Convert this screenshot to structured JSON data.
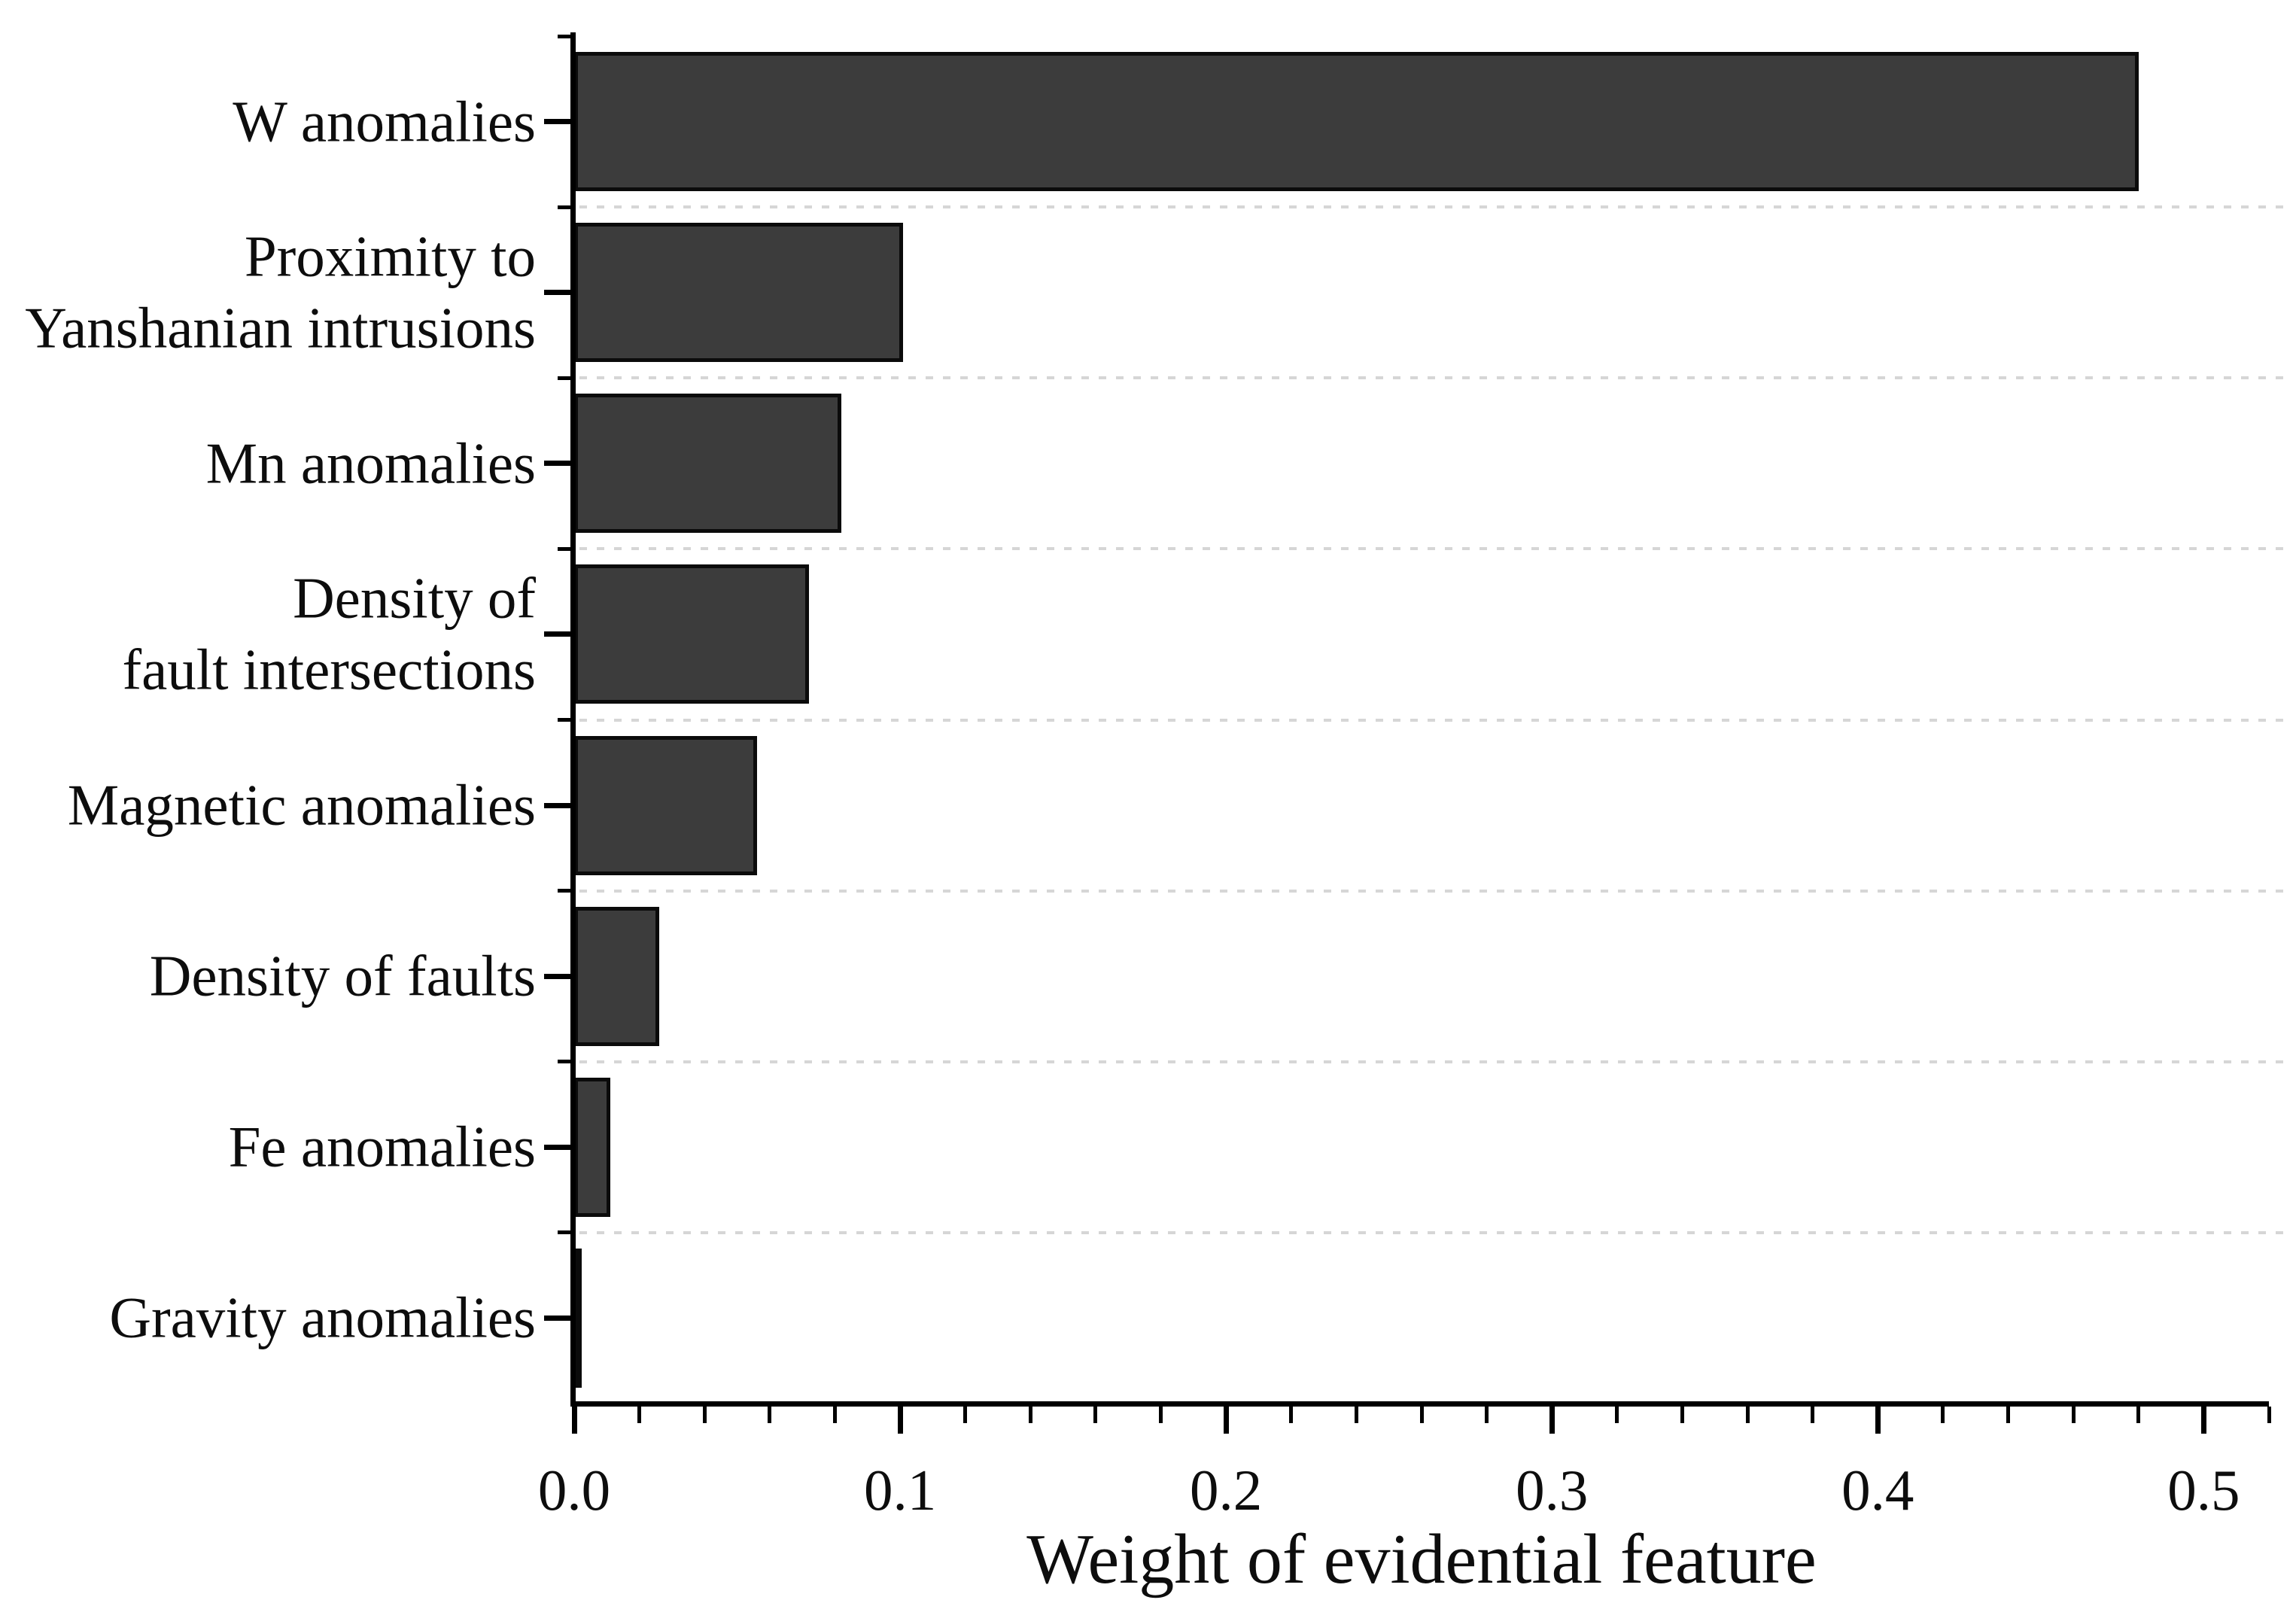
{
  "chart_data": {
    "type": "bar",
    "orientation": "horizontal",
    "title": "",
    "xlabel": "Weight of evidential feature",
    "ylabel": "",
    "categories": [
      "W anomalies",
      "Proximity to\nYanshanian intrusions",
      "Mn anomalies",
      "Density of\nfault intersections",
      "Magnetic anomalies",
      "Density of faults",
      "Fe anomalies",
      "Gravity anomalies"
    ],
    "values": [
      0.48,
      0.101,
      0.082,
      0.072,
      0.056,
      0.026,
      0.011,
      0.002
    ],
    "xlim": [
      0,
      0.52
    ],
    "x_major_ticks": [
      0,
      0.1,
      0.2,
      0.3,
      0.4,
      0.5
    ],
    "x_tick_labels": [
      "0.0",
      "0.1",
      "0.2",
      "0.3",
      "0.4",
      "0.5"
    ],
    "x_minor_tick_step": 0.02,
    "grid": {
      "style": "dashed",
      "placement": "between-category-rows"
    },
    "legend": "none",
    "colors": {
      "bar_fill": "#3c3c3c",
      "bar_border": "#0b0b0b",
      "axis": "#000000",
      "gridline": "#d6d6d6",
      "text": "#0d0d0d",
      "background": "#ffffff"
    }
  }
}
